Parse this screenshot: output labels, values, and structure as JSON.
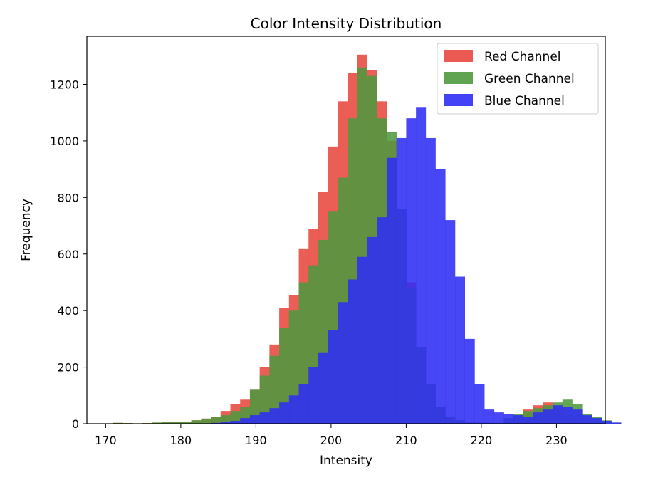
{
  "chart_data": {
    "type": "bar",
    "title": "Color Intensity Distribution",
    "xlabel": "Intensity",
    "ylabel": "Frequency",
    "xlim": [
      167.5,
      236.5
    ],
    "ylim": [
      0,
      1370
    ],
    "xticks": [
      170,
      180,
      190,
      200,
      210,
      220,
      230
    ],
    "yticks": [
      0,
      200,
      400,
      600,
      800,
      1000,
      1200
    ],
    "bin_width": 1.3,
    "bin_start": 171,
    "legend_position": "top-right",
    "grid": false,
    "series": [
      {
        "name": "Red Channel",
        "color": "#e8483f",
        "values": [
          3,
          2,
          1,
          2,
          4,
          5,
          6,
          7,
          12,
          18,
          25,
          45,
          70,
          85,
          120,
          200,
          280,
          410,
          455,
          620,
          690,
          820,
          980,
          1140,
          1240,
          1305,
          1250,
          1140,
          1000,
          760,
          500,
          270,
          140,
          60,
          25,
          12,
          6,
          4,
          3,
          2,
          15,
          30,
          50,
          65,
          75,
          55,
          30,
          15,
          8,
          4,
          2,
          1
        ]
      },
      {
        "name": "Green Channel",
        "color": "#4f9a3f",
        "values": [
          3,
          2,
          1,
          2,
          4,
          5,
          6,
          7,
          12,
          18,
          25,
          30,
          45,
          60,
          120,
          170,
          240,
          340,
          400,
          500,
          560,
          650,
          750,
          870,
          1080,
          1260,
          1230,
          1080,
          1030,
          760,
          480,
          270,
          140,
          60,
          25,
          12,
          6,
          4,
          3,
          2,
          20,
          35,
          45,
          55,
          65,
          75,
          85,
          70,
          35,
          25,
          12,
          4
        ]
      },
      {
        "name": "Blue Channel",
        "color": "#2f2df5",
        "values": [
          0,
          0,
          0,
          0,
          0,
          0,
          0,
          0,
          0,
          1,
          3,
          6,
          10,
          20,
          30,
          40,
          55,
          75,
          100,
          140,
          200,
          250,
          330,
          430,
          510,
          590,
          660,
          730,
          940,
          1010,
          1080,
          1120,
          1010,
          900,
          720,
          520,
          300,
          140,
          50,
          40,
          35,
          30,
          25,
          40,
          50,
          65,
          60,
          50,
          30,
          20,
          10,
          4
        ]
      }
    ]
  }
}
